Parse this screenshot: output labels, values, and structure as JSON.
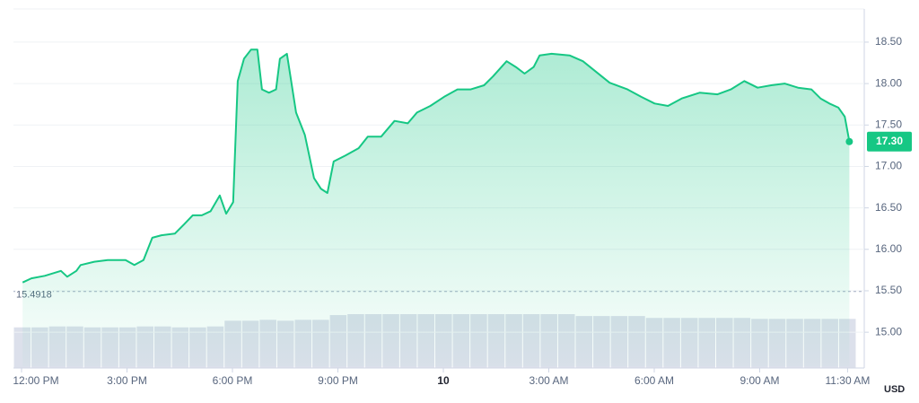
{
  "chart_data": {
    "type": "area",
    "x": [
      0.03,
      0.28,
      0.66,
      1.12,
      1.3,
      1.56,
      1.68,
      2.07,
      2.45,
      2.96,
      3.21,
      3.47,
      3.72,
      3.98,
      4.36,
      4.62,
      4.87,
      5.13,
      5.38,
      5.64,
      5.82,
      6.02,
      6.15,
      6.33,
      6.53,
      6.71,
      6.84,
      7.04,
      7.24,
      7.35,
      7.55,
      7.81,
      8.06,
      8.32,
      8.52,
      8.7,
      8.88,
      9.21,
      9.59,
      9.85,
      10.23,
      10.61,
      10.99,
      11.25,
      11.63,
      12.02,
      12.4,
      12.78,
      13.16,
      13.42,
      13.8,
      14.06,
      14.31,
      14.57,
      14.74,
      15.08,
      15.59,
      15.97,
      16.35,
      16.73,
      17.24,
      17.63,
      18.01,
      18.39,
      18.78,
      19.29,
      19.8,
      20.18,
      20.56,
      20.94,
      21.33,
      21.71,
      22.09,
      22.47,
      22.73,
      22.98,
      23.24,
      23.42,
      23.55
    ],
    "series": [
      {
        "color": "#16c784",
        "values": [
          15.6,
          15.65,
          15.68,
          15.74,
          15.67,
          15.74,
          15.81,
          15.85,
          15.87,
          15.87,
          15.81,
          15.87,
          16.14,
          16.17,
          16.19,
          16.3,
          16.41,
          16.41,
          16.46,
          16.65,
          16.43,
          16.57,
          18.03,
          18.3,
          18.41,
          18.41,
          17.93,
          17.89,
          17.93,
          18.3,
          18.36,
          17.65,
          17.38,
          16.86,
          16.73,
          16.68,
          17.06,
          17.13,
          17.22,
          17.36,
          17.36,
          17.55,
          17.52,
          17.65,
          17.73,
          17.84,
          17.93,
          17.93,
          17.98,
          18.09,
          18.27,
          18.2,
          18.12,
          18.2,
          18.34,
          18.36,
          18.34,
          18.27,
          18.14,
          18.01,
          17.93,
          17.84,
          17.76,
          17.73,
          17.82,
          17.89,
          17.87,
          17.93,
          18.03,
          17.95,
          17.98,
          18.0,
          17.95,
          17.93,
          17.82,
          17.76,
          17.71,
          17.6,
          17.3
        ]
      }
    ],
    "xlim": [
      0,
      24
    ],
    "xticks": [
      {
        "value": 0,
        "label": "12:00 PM"
      },
      {
        "value": 3,
        "label": "3:00 PM"
      },
      {
        "value": 6,
        "label": "6:00 PM"
      },
      {
        "value": 9,
        "label": "9:00 PM"
      },
      {
        "value": 12,
        "label": "10"
      },
      {
        "value": 15,
        "label": "3:00 AM"
      },
      {
        "value": 18,
        "label": "6:00 AM"
      },
      {
        "value": 21,
        "label": "9:00 AM"
      },
      {
        "value": 23.5,
        "label": "11:30 AM"
      }
    ],
    "ylim": [
      14.59,
      18.9
    ],
    "yticks": [
      {
        "value": 15,
        "label": "15.00"
      },
      {
        "value": 15.5,
        "label": "15.50"
      },
      {
        "value": 16,
        "label": "16.00"
      },
      {
        "value": 16.5,
        "label": "16.50"
      },
      {
        "value": 17,
        "label": "17.00"
      },
      {
        "value": 17.5,
        "label": "17.50"
      },
      {
        "value": 18,
        "label": "18.00"
      },
      {
        "value": 18.5,
        "label": "18.50"
      }
    ],
    "y_unit": "USD",
    "grid": true,
    "reference_line": 15.4918,
    "price_badge": {
      "value": 17.3,
      "label": "17.30"
    },
    "volume": {
      "color": "#d3d8e6",
      "values": [
        43,
        43,
        44,
        44,
        43,
        43,
        43,
        44,
        44,
        43,
        43,
        44,
        50,
        50,
        51,
        50,
        51,
        51,
        56,
        57,
        57,
        57,
        57,
        57,
        57,
        57,
        57,
        57,
        57,
        57,
        57,
        57,
        55,
        55,
        55,
        55,
        53,
        53,
        53,
        53,
        53,
        53,
        52,
        52,
        52,
        52,
        52,
        52
      ]
    }
  }
}
